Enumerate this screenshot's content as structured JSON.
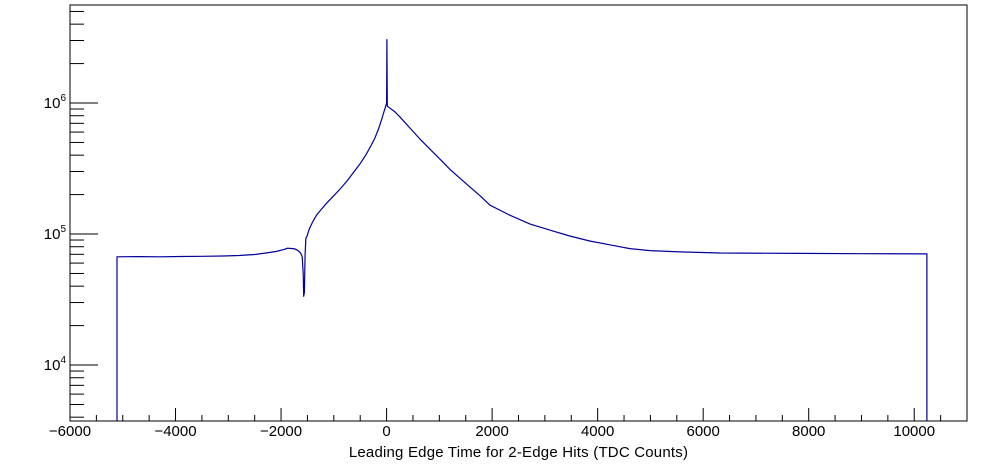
{
  "colors": {
    "background": "#ffffff",
    "axis": "#000000",
    "line": "#000099"
  },
  "chart_data": {
    "type": "line",
    "title": "",
    "xlabel": "Leading Edge Time for 2-Edge Hits (TDC Counts)",
    "ylabel": "",
    "grid": false,
    "legend": "none",
    "x_axis": {
      "min": -6000,
      "max": 11000,
      "major_ticks": [
        -6000,
        -4000,
        -2000,
        0,
        2000,
        4000,
        6000,
        8000,
        10000
      ],
      "major_labels": [
        "−6000",
        "−4000",
        "−2000",
        "0",
        "2000",
        "4000",
        "6000",
        "8000",
        "10000"
      ],
      "minor_step": 500
    },
    "y_axis": {
      "scale": "log",
      "min": 3740,
      "max": 5600000,
      "label_base": "10",
      "decade_exponents": [
        4,
        5,
        6
      ]
    },
    "series": [
      {
        "name": "leading-edge-time-histogram",
        "color": "#000099",
        "points": [
          [
            -5110,
            3740
          ],
          [
            -5110,
            67000
          ],
          [
            -4700,
            67200
          ],
          [
            -4300,
            67000
          ],
          [
            -3900,
            67400
          ],
          [
            -3500,
            67600
          ],
          [
            -3100,
            68000
          ],
          [
            -2800,
            68600
          ],
          [
            -2500,
            69800
          ],
          [
            -2300,
            71500
          ],
          [
            -2100,
            73500
          ],
          [
            -1950,
            76000
          ],
          [
            -1880,
            78000
          ],
          [
            -1800,
            77500
          ],
          [
            -1740,
            77000
          ],
          [
            -1680,
            75000
          ],
          [
            -1630,
            71500
          ],
          [
            -1600,
            67000
          ],
          [
            -1580,
            50000
          ],
          [
            -1570,
            33500
          ],
          [
            -1558,
            36000
          ],
          [
            -1545,
            70000
          ],
          [
            -1530,
            93000
          ],
          [
            -1505,
            97000
          ],
          [
            -1470,
            108000
          ],
          [
            -1400,
            124000
          ],
          [
            -1330,
            139000
          ],
          [
            -1240,
            154000
          ],
          [
            -1120,
            175000
          ],
          [
            -1000,
            196000
          ],
          [
            -880,
            221000
          ],
          [
            -750,
            254000
          ],
          [
            -620,
            298000
          ],
          [
            -500,
            345000
          ],
          [
            -390,
            403000
          ],
          [
            -300,
            470000
          ],
          [
            -220,
            543000
          ],
          [
            -150,
            640000
          ],
          [
            -90,
            755000
          ],
          [
            -50,
            855000
          ],
          [
            -15,
            950000
          ],
          [
            0,
            1000000
          ],
          [
            6,
            3050000
          ],
          [
            14,
            945000
          ],
          [
            160,
            855000
          ],
          [
            250,
            785000
          ],
          [
            440,
            646000
          ],
          [
            630,
            532000
          ],
          [
            820,
            445000
          ],
          [
            1010,
            373000
          ],
          [
            1200,
            312000
          ],
          [
            1390,
            267000
          ],
          [
            1580,
            228000
          ],
          [
            1770,
            196000
          ],
          [
            1960,
            166000
          ],
          [
            2340,
            139000
          ],
          [
            2720,
            119000
          ],
          [
            3100,
            107000
          ],
          [
            3470,
            96600
          ],
          [
            3850,
            88500
          ],
          [
            4230,
            82700
          ],
          [
            4610,
            77400
          ],
          [
            4990,
            74800
          ],
          [
            5560,
            73000
          ],
          [
            6320,
            71700
          ],
          [
            7830,
            71100
          ],
          [
            9000,
            70800
          ],
          [
            10240,
            70500
          ],
          [
            10240,
            3740
          ]
        ]
      }
    ]
  }
}
